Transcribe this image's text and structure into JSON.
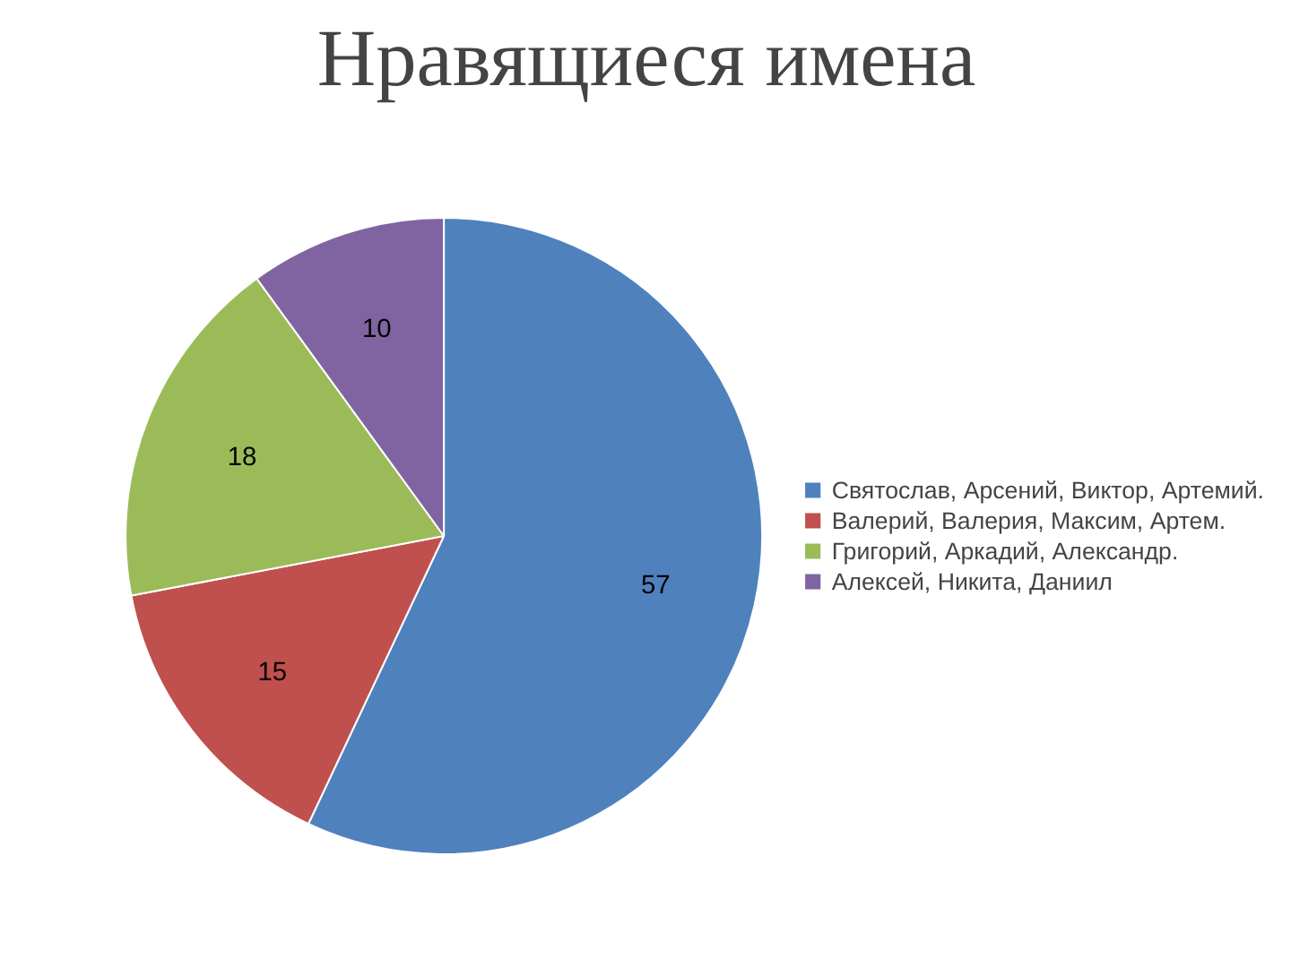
{
  "chart_data": {
    "type": "pie",
    "title": "Нравящиеся имена",
    "categories": [
      "Святослав, Арсений, Виктор, Артемий.",
      "Валерий, Валерия, Максим, Артем.",
      "Григорий, Аркадий, Александр.",
      "Алексей, Никита, Даниил"
    ],
    "values": [
      57,
      15,
      18,
      10
    ],
    "colors": [
      "#4f81bd",
      "#c0504d",
      "#9bbb59",
      "#8064a2"
    ],
    "data_labels": true,
    "legend": "right"
  }
}
